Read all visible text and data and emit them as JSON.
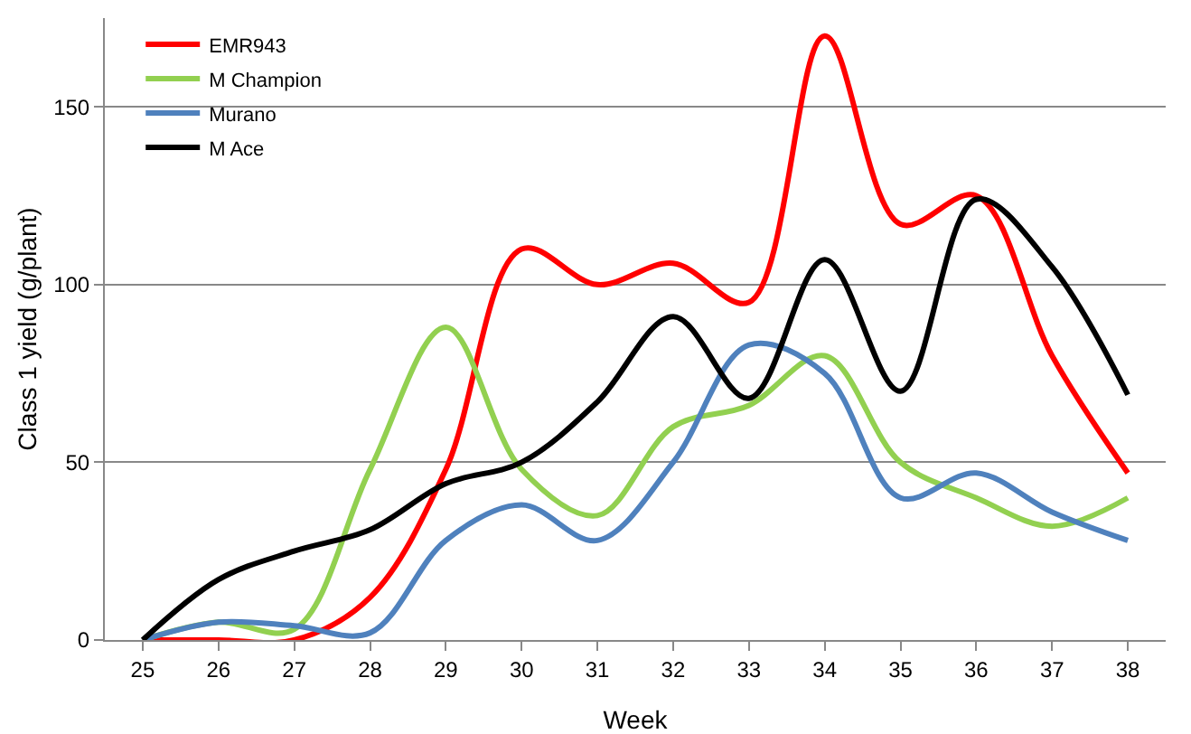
{
  "chart_data": {
    "type": "line",
    "xlabel": "Week",
    "ylabel": "Class 1 yield (g/plant)",
    "x": [
      25,
      26,
      27,
      28,
      29,
      30,
      31,
      32,
      33,
      34,
      35,
      36,
      37,
      38
    ],
    "series": [
      {
        "name": "EMR943",
        "color": "#ff0000",
        "values": [
          0,
          0,
          0,
          12,
          48,
          110,
          100,
          106,
          95,
          170,
          117,
          125,
          80,
          47
        ]
      },
      {
        "name": "M Champion",
        "color": "#92d050",
        "values": [
          0,
          5,
          3,
          48,
          88,
          48,
          35,
          60,
          66,
          80,
          50,
          40,
          32,
          40
        ]
      },
      {
        "name": "Murano",
        "color": "#4f81bd",
        "values": [
          0,
          5,
          4,
          2,
          28,
          38,
          28,
          50,
          83,
          75,
          40,
          47,
          36,
          28
        ]
      },
      {
        "name": "M Ace",
        "color": "#000000",
        "values": [
          0,
          17,
          25,
          31,
          44,
          50,
          67,
          91,
          68,
          107,
          70,
          124,
          105,
          69
        ]
      }
    ],
    "xlim": [
      24.5,
      38.5
    ],
    "xticks": [
      25,
      26,
      27,
      28,
      29,
      30,
      31,
      32,
      33,
      34,
      35,
      36,
      37,
      38
    ],
    "ylim": [
      0,
      175
    ],
    "yticks": [
      0,
      50,
      100,
      150
    ],
    "grid": "y",
    "legend": "top left",
    "marker": "none",
    "line_style": "solid"
  }
}
